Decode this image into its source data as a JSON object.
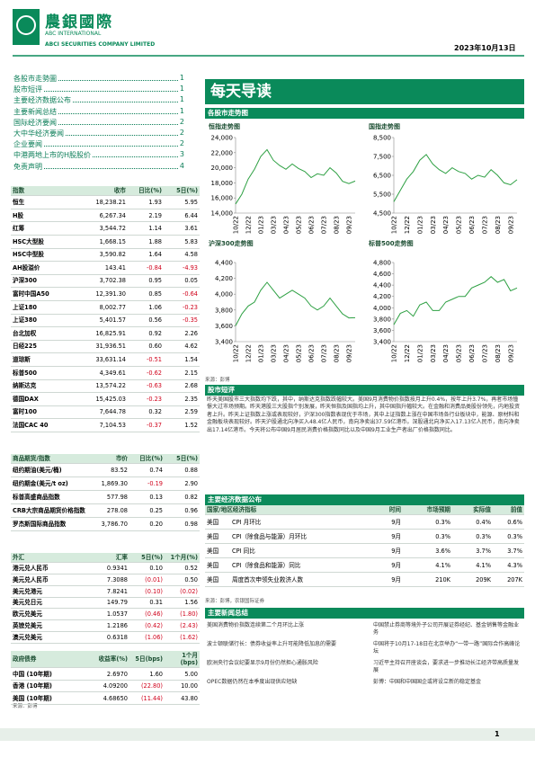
{
  "header": {
    "logo_cn": "農銀國際",
    "logo_en1": "ABC INTERNATIONAL",
    "logo_en2": "ABCI SECURITIES COMPANY LIMITED",
    "date": "2023年10月13日"
  },
  "toc": [
    {
      "title": "各股市走勢圖",
      "page": "1"
    },
    {
      "title": "股市短评",
      "page": "1"
    },
    {
      "title": "主要经济数据公布",
      "page": "1"
    },
    {
      "title": "主要新闻总结",
      "page": "1"
    },
    {
      "title": "国际经济要闻",
      "page": "2"
    },
    {
      "title": "大中华经济要闻",
      "page": "2"
    },
    {
      "title": "企业要闻",
      "page": "2"
    },
    {
      "title": "中港两地上市的H股股价",
      "page": "3"
    },
    {
      "title": "免责声明",
      "page": "4"
    }
  ],
  "indices": {
    "header": [
      "指数",
      "收市",
      "日比(%)",
      "5日(%)"
    ],
    "rows": [
      [
        "恒生",
        "18,238.21",
        "1.93",
        "5.95"
      ],
      [
        "H股",
        "6,267.34",
        "2.19",
        "6.44"
      ],
      [
        "红筹",
        "3,544.72",
        "1.14",
        "3.61"
      ],
      [
        "HSC大型股",
        "1,668.15",
        "1.88",
        "5.83"
      ],
      [
        "HSC中型股",
        "3,590.82",
        "1.64",
        "4.58"
      ],
      [
        "AH股溢价",
        "143.41",
        "-0.84",
        "-4.93"
      ],
      [
        "沪深300",
        "3,702.38",
        "0.95",
        "0.05"
      ],
      [
        "富时中国A50",
        "12,391.30",
        "0.85",
        "-0.64"
      ],
      [
        "上证180",
        "8,002.77",
        "1.06",
        "-0.23"
      ],
      [
        "上证380",
        "5,401.57",
        "0.56",
        "-0.35"
      ],
      [
        "台北加权",
        "16,825.91",
        "0.92",
        "2.26"
      ],
      [
        "日经225",
        "31,936.51",
        "0.60",
        "4.62"
      ],
      [
        "道琼斯",
        "33,631.14",
        "-0.51",
        "1.54"
      ],
      [
        "标普500",
        "4,349.61",
        "-0.62",
        "2.15"
      ],
      [
        "纳斯达克",
        "13,574.22",
        "-0.63",
        "2.68"
      ],
      [
        "德国DAX",
        "15,425.03",
        "-0.23",
        "2.35"
      ],
      [
        "富时100",
        "7,644.78",
        "0.32",
        "2.59"
      ],
      [
        "法国CAC 40",
        "7,104.53",
        "-0.37",
        "1.52"
      ]
    ]
  },
  "commodities": {
    "header": [
      "商品期货/指数",
      "市价",
      "日比(%)",
      "5日(%)"
    ],
    "rows": [
      [
        "纽约期油(美元/桶)",
        "83.52",
        "0.74",
        "0.88"
      ],
      [
        "纽约期金(美元/t oz)",
        "1,869.30",
        "-0.19",
        "2.90"
      ],
      [
        "标普高盛商品指数",
        "577.98",
        "0.13",
        "0.82"
      ],
      [
        "CRB大宗商品期货价格指数",
        "278.08",
        "0.25",
        "0.96"
      ],
      [
        "罗杰斯国际商品指数",
        "3,786.70",
        "0.20",
        "0.98"
      ]
    ]
  },
  "fx": {
    "header": [
      "外汇",
      "汇率",
      "5日(%)",
      "1个月(%)"
    ],
    "rows": [
      [
        "港元兑人民币",
        "0.9341",
        "0.10",
        "0.52"
      ],
      [
        "美元兑人民币",
        "7.3088",
        "(0.01)",
        "0.50"
      ],
      [
        "美元兑港元",
        "7.8241",
        "(0.10)",
        "(0.02)"
      ],
      [
        "美元兑日元",
        "149.79",
        "0.31",
        "1.56"
      ],
      [
        "欧元兑美元",
        "1.0537",
        "(0.46)",
        "(1.80)"
      ],
      [
        "英镑兑美元",
        "1.2186",
        "(0.42)",
        "(2.43)"
      ],
      [
        "澳元兑美元",
        "0.6318",
        "(1.06)",
        "(1.62)"
      ]
    ]
  },
  "bonds": {
    "header": [
      "政府债券",
      "收益率(%)",
      "5日(bps)",
      "1个月(bps)"
    ],
    "rows": [
      [
        "中国 (10年期)",
        "2.6970",
        "1.60",
        "5.00"
      ],
      [
        "香港 (10年期)",
        "4.09200",
        "(22.80)",
        "10.00"
      ],
      [
        "美国 (10年期)",
        "4.68650",
        "(11.44)",
        "43.80"
      ]
    ],
    "source": "来源：彭博"
  },
  "banner": "每天导读",
  "section_charts": "各股市走势图",
  "chart_source": "来源：彭博",
  "chart_data": [
    {
      "type": "line",
      "title": "恒指走势图",
      "categories": [
        "10/22",
        null,
        "12/22",
        null,
        "01/23",
        null,
        "03/23",
        null,
        "04/23",
        null,
        "05/23",
        null,
        "06/23",
        null,
        "07/23",
        null,
        "08/23",
        null,
        "09/23",
        null
      ],
      "values": [
        15200,
        16500,
        18500,
        19800,
        21500,
        22400,
        21000,
        20300,
        19800,
        20500,
        19900,
        19500,
        18700,
        19200,
        19000,
        20000,
        19300,
        18200,
        17900,
        18238
      ],
      "ylim": [
        14000,
        24000
      ],
      "yticks": [
        {
          "value": 14000,
          "label": "14,000"
        },
        {
          "value": 16000,
          "label": "16,000"
        },
        {
          "value": 18000,
          "label": "18,000"
        },
        {
          "value": 20000,
          "label": "20,000"
        },
        {
          "value": 22000,
          "label": "22,000"
        },
        {
          "value": 24000,
          "label": "24,000"
        }
      ],
      "color": "#2ea043"
    },
    {
      "type": "line",
      "title": "国指走势图",
      "categories": [
        "10/22",
        null,
        "12/22",
        null,
        "01/23",
        null,
        "03/23",
        null,
        "04/23",
        null,
        "05/23",
        null,
        "06/23",
        null,
        "07/23",
        null,
        "08/23",
        null,
        "09/23",
        null
      ],
      "values": [
        5100,
        5700,
        6300,
        6700,
        7300,
        7600,
        7100,
        6800,
        6600,
        6900,
        6700,
        6600,
        6300,
        6500,
        6400,
        6800,
        6500,
        6100,
        6000,
        6267
      ],
      "ylim": [
        4500,
        8500
      ],
      "yticks": [
        {
          "value": 4500,
          "label": "4,500"
        },
        {
          "value": 5500,
          "label": "5,500"
        },
        {
          "value": 6500,
          "label": "6,500"
        },
        {
          "value": 7500,
          "label": "7,500"
        },
        {
          "value": 8500,
          "label": "8,500"
        }
      ],
      "color": "#2ea043"
    },
    {
      "type": "line",
      "title": "沪深300走势图",
      "categories": [
        "10/22",
        null,
        "12/22",
        null,
        "01/23",
        null,
        "03/23",
        null,
        "04/23",
        null,
        "05/23",
        null,
        "06/23",
        null,
        "07/23",
        null,
        "08/23",
        null,
        "09/23",
        null
      ],
      "values": [
        3600,
        3750,
        3850,
        3900,
        4050,
        4150,
        4050,
        3950,
        4000,
        4050,
        4000,
        3950,
        3850,
        3800,
        3850,
        3950,
        3850,
        3750,
        3700,
        3702
      ],
      "ylim": [
        3400,
        4400
      ],
      "yticks": [
        {
          "value": 3400,
          "label": "3,400"
        },
        {
          "value": 3600,
          "label": "3,600"
        },
        {
          "value": 3800,
          "label": "3,800"
        },
        {
          "value": 4000,
          "label": "4,000"
        },
        {
          "value": 4200,
          "label": "4,200"
        },
        {
          "value": 4400,
          "label": "4,400"
        }
      ],
      "color": "#2ea043"
    },
    {
      "type": "line",
      "title": "标普500走势图",
      "categories": [
        "10/22",
        null,
        "12/22",
        null,
        "01/23",
        null,
        "03/23",
        null,
        "04/23",
        null,
        "05/23",
        null,
        "06/23",
        null,
        "07/23",
        null,
        "08/23",
        null,
        "09/23",
        null
      ],
      "values": [
        3700,
        3900,
        3950,
        3850,
        4050,
        4100,
        3950,
        3950,
        4100,
        4150,
        4200,
        4200,
        4350,
        4400,
        4450,
        4550,
        4450,
        4500,
        4300,
        4349
      ],
      "ylim": [
        3400,
        4800
      ],
      "yticks": [
        {
          "value": 3400,
          "label": "3,400"
        },
        {
          "value": 3600,
          "label": "3,600"
        },
        {
          "value": 3800,
          "label": "3,800"
        },
        {
          "value": 4000,
          "label": "4,000"
        },
        {
          "value": 4200,
          "label": "4,200"
        },
        {
          "value": 4400,
          "label": "4,400"
        },
        {
          "value": 4600,
          "label": "4,600"
        },
        {
          "value": 4800,
          "label": "4,800"
        }
      ],
      "color": "#2ea043"
    }
  ],
  "commentary": {
    "title": "股市短评",
    "text": "昨天美国股市三大指数均下跌，其中，纳斯达克指数跌幅较大。美国9月消费物价指数按月上升0.4%，按年上升3.7%，再者市场憧憬大过市场预期。昨天港股三大股指个别发展，昨天恒指及国指均上升，其中国指升幅较大。在金融和消费品类股份领先，内地投资者上升。昨天上证指数上涨或表现较好，沪深300指数表现优于市场，其中上证指数上涨在中国市场各行业板块中，能源、原材料和金融板块表现较好。昨天沪股通北向净买入48.4亿人民币，南向净卖出37.59亿港币。深股通北向净买入17.13亿人民币，南向净卖出17.14亿港币。今天将公布中国9月居民消费价格指数同比以及中国9月工业生产者出厂价格指数同比。"
  },
  "econ": {
    "title": "主要经济数据公布",
    "header": [
      "国家/地区经济指标",
      "时间",
      "市场预期",
      "实际值",
      "前值"
    ],
    "rows": [
      [
        "美国",
        "CPI 月环比",
        "9月",
        "0.3%",
        "0.4%",
        "0.6%"
      ],
      [
        "美国",
        "CPI（除食品与能源）月环比",
        "9月",
        "0.3%",
        "0.3%",
        "0.3%"
      ],
      [
        "美国",
        "CPI 同比",
        "9月",
        "3.6%",
        "3.7%",
        "3.7%"
      ],
      [
        "美国",
        "CPI（除食品和能源）同比",
        "9月",
        "4.1%",
        "4.1%",
        "4.3%"
      ],
      [
        "美国",
        "周度首次申领失业救济人数",
        "9月",
        "210K",
        "209K",
        "207K"
      ]
    ],
    "source": "来源：彭博，农银国际证券"
  },
  "news": {
    "title": "主要新闻总结",
    "left": [
      "美国消费物价指数连续第二个月环比上涨",
      "波士顿联储行长：债券收益率上升可能降低加息的需要",
      "欧洲央行会议纪要显示9月份仍然担心通胀风险",
      "OPEC数据仍然在本季度出现供应短缺"
    ],
    "right": [
      "中国禁止券商等境外子公司开展证券经纪、基金销售等金融业务",
      "中国将于10月17-18日在北京举办“一带一路”国际合作高峰论坛",
      "习近平主持召开座谈会，要求进一步推动长江经济带高质量发展",
      "彭博：中国和中国国企或将设立新的稳定基金"
    ]
  },
  "page": "1"
}
